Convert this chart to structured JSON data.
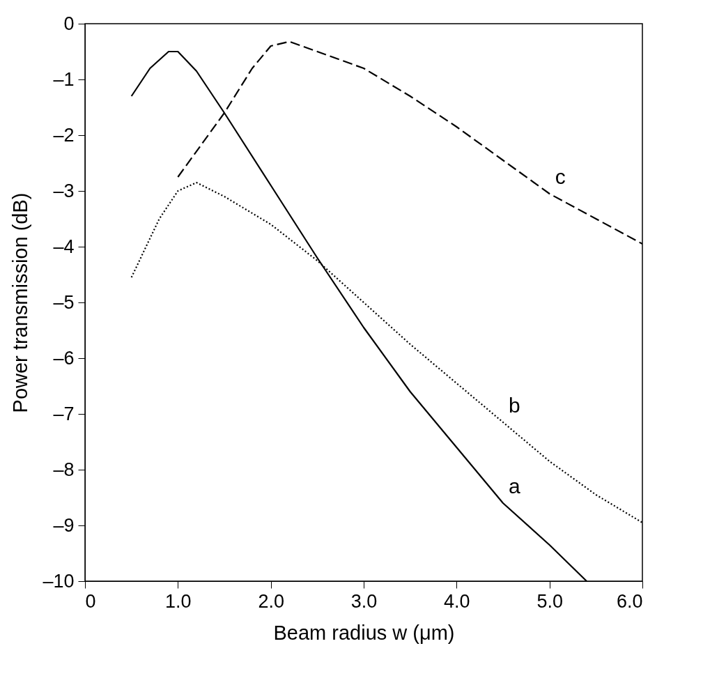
{
  "chart_data": {
    "type": "line",
    "xlabel": "Beam radius w (μm)",
    "ylabel": "Power transmission (dB)",
    "xlim": [
      0,
      6
    ],
    "ylim": [
      -10,
      0
    ],
    "xticks": [
      0,
      {
        "value": 1,
        "label": "1.0"
      },
      {
        "value": 2,
        "label": "2.0"
      },
      {
        "value": 3,
        "label": "3.0"
      },
      {
        "value": 4,
        "label": "4.0"
      },
      {
        "value": 5,
        "label": "5.0"
      },
      {
        "value": 6,
        "label": "6.0"
      }
    ],
    "yticks": [
      0,
      {
        "value": -1,
        "label": "–1"
      },
      {
        "value": -2,
        "label": "–2"
      },
      {
        "value": -3,
        "label": "–3"
      },
      {
        "value": -4,
        "label": "–4"
      },
      {
        "value": -5,
        "label": "–5"
      },
      {
        "value": -6,
        "label": "–6"
      },
      {
        "value": -7,
        "label": "–7"
      },
      {
        "value": -8,
        "label": "–8"
      },
      {
        "value": -9,
        "label": "–9"
      },
      {
        "value": -10,
        "label": "–10"
      }
    ],
    "grid": false,
    "marker": "none",
    "series": [
      {
        "name": "a",
        "color": "#000000",
        "line_style": "solid",
        "x": [
          0.5,
          0.7,
          0.9,
          1.0,
          1.2,
          1.5,
          2.0,
          2.5,
          3.0,
          3.5,
          4.0,
          4.5,
          5.0,
          5.4
        ],
        "values": [
          -1.3,
          -0.8,
          -0.5,
          -0.5,
          -0.85,
          -1.6,
          -2.9,
          -4.2,
          -5.45,
          -6.6,
          -7.6,
          -8.6,
          -9.35,
          -10
        ]
      },
      {
        "name": "b",
        "color": "#000000",
        "line_style": "dotted",
        "x": [
          0.5,
          0.8,
          1.0,
          1.2,
          1.5,
          2.0,
          2.5,
          3.0,
          3.5,
          4.0,
          4.5,
          5.0,
          5.5,
          6.0
        ],
        "values": [
          -4.55,
          -3.5,
          -3.0,
          -2.85,
          -3.1,
          -3.6,
          -4.25,
          -5.0,
          -5.75,
          -6.45,
          -7.15,
          -7.85,
          -8.45,
          -8.95
        ]
      },
      {
        "name": "c",
        "color": "#000000",
        "line_style": "dashed",
        "x": [
          1.0,
          1.5,
          1.8,
          2.0,
          2.2,
          2.5,
          3.0,
          3.5,
          4.0,
          4.5,
          5.0,
          5.5,
          6.0
        ],
        "values": [
          -2.75,
          -1.6,
          -0.8,
          -0.4,
          -0.32,
          -0.5,
          -0.8,
          -1.3,
          -1.85,
          -2.45,
          -3.05,
          -3.5,
          -3.95
        ]
      }
    ]
  }
}
